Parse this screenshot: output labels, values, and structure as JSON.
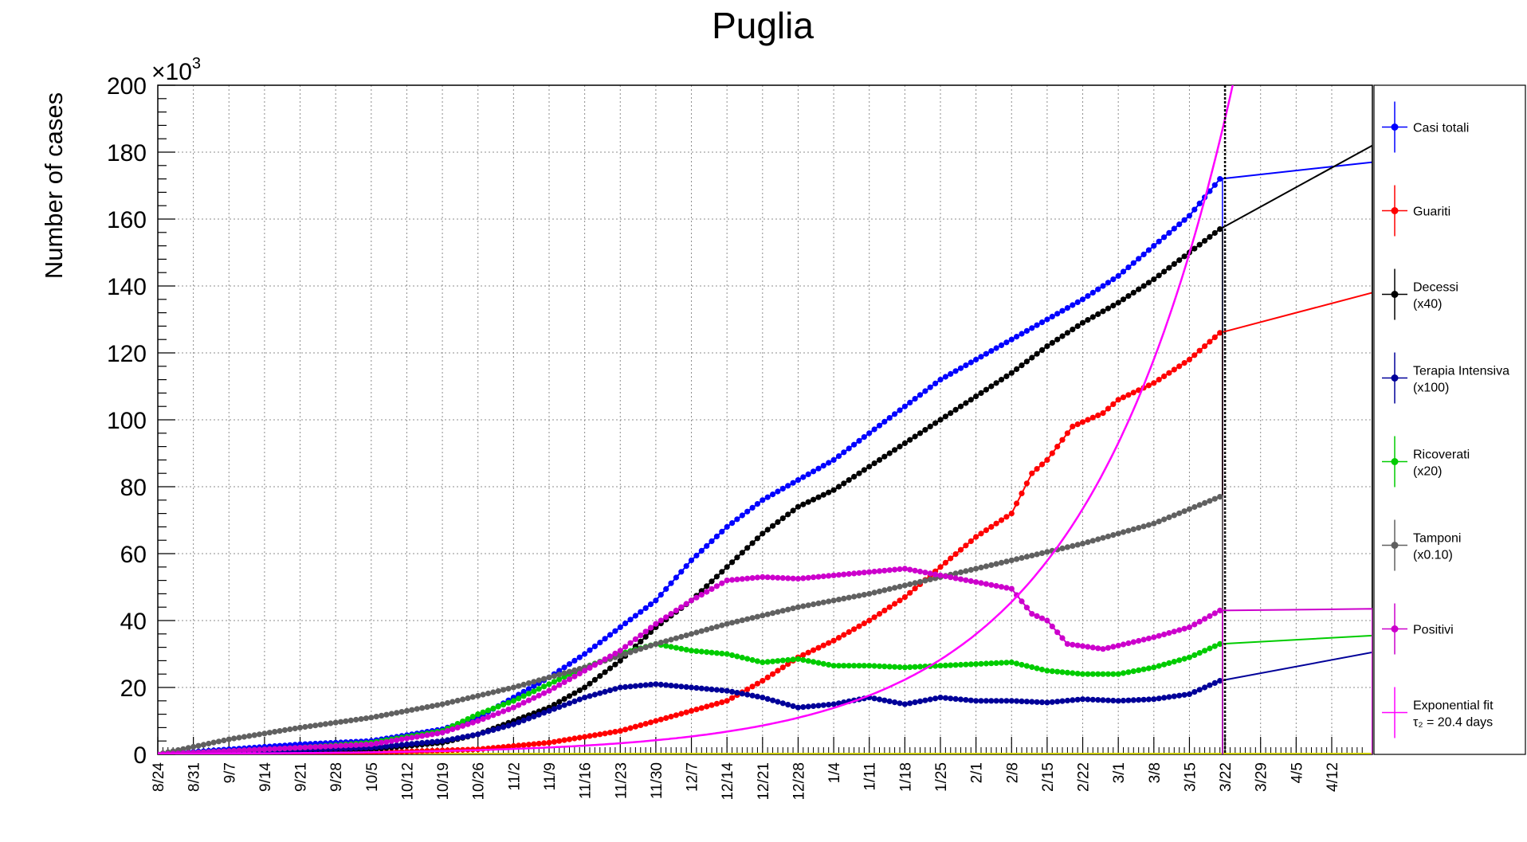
{
  "chart_data": {
    "type": "line",
    "title": "Puglia",
    "ylabel": "Number of cases",
    "y_multiplier": "×10",
    "y_multiplier_exp": "3",
    "ylim": [
      0,
      200000
    ],
    "y_ticks": [
      0,
      20,
      40,
      60,
      80,
      100,
      120,
      140,
      160,
      180,
      200
    ],
    "x_start": "2020-08-24",
    "x_end": "2021-04-20",
    "x_ticks": [
      "8/24",
      "8/31",
      "9/7",
      "9/14",
      "9/21",
      "9/28",
      "10/5",
      "10/12",
      "10/19",
      "10/26",
      "11/2",
      "11/9",
      "11/16",
      "11/23",
      "11/30",
      "12/7",
      "12/14",
      "12/21",
      "12/28",
      "1/4",
      "1/11",
      "1/18",
      "1/25",
      "2/1",
      "2/8",
      "2/15",
      "2/22",
      "3/1",
      "3/8",
      "3/15",
      "3/22",
      "3/29",
      "4/5",
      "4/12"
    ],
    "grid": true,
    "legend_position": "right",
    "vline_date": "2021-03-22",
    "series": [
      {
        "name": "Casi totali",
        "color": "#0000ff",
        "points": [
          [
            "2020-08-24",
            0
          ],
          [
            "2020-09-21",
            3000
          ],
          [
            "2020-10-05",
            4000
          ],
          [
            "2020-10-19",
            7500
          ],
          [
            "2020-10-26",
            11000
          ],
          [
            "2020-11-02",
            17000
          ],
          [
            "2020-11-09",
            23000
          ],
          [
            "2020-11-16",
            30000
          ],
          [
            "2020-11-23",
            38000
          ],
          [
            "2020-11-30",
            46000
          ],
          [
            "2020-12-07",
            58000
          ],
          [
            "2020-12-14",
            68000
          ],
          [
            "2020-12-21",
            76000
          ],
          [
            "2020-12-28",
            82000
          ],
          [
            "2021-01-04",
            88000
          ],
          [
            "2021-01-11",
            96000
          ],
          [
            "2021-01-18",
            104000
          ],
          [
            "2021-01-25",
            112000
          ],
          [
            "2021-02-01",
            118000
          ],
          [
            "2021-02-08",
            124000
          ],
          [
            "2021-02-15",
            130000
          ],
          [
            "2021-02-22",
            136000
          ],
          [
            "2021-03-01",
            143000
          ],
          [
            "2021-03-08",
            152000
          ],
          [
            "2021-03-15",
            161000
          ],
          [
            "2021-03-21",
            172000
          ]
        ],
        "extrapolation": [
          [
            "2021-03-21",
            172000
          ],
          [
            "2021-04-20",
            177000
          ]
        ]
      },
      {
        "name": "Guariti",
        "color": "#ff0000",
        "points": [
          [
            "2020-08-24",
            0
          ],
          [
            "2020-10-05",
            500
          ],
          [
            "2020-10-26",
            1500
          ],
          [
            "2020-11-09",
            3500
          ],
          [
            "2020-11-23",
            7000
          ],
          [
            "2020-11-30",
            10000
          ],
          [
            "2020-12-07",
            13000
          ],
          [
            "2020-12-14",
            16000
          ],
          [
            "2020-12-21",
            22000
          ],
          [
            "2020-12-28",
            29000
          ],
          [
            "2021-01-04",
            34000
          ],
          [
            "2021-01-11",
            40000
          ],
          [
            "2021-01-18",
            47000
          ],
          [
            "2021-01-25",
            56000
          ],
          [
            "2021-02-01",
            65000
          ],
          [
            "2021-02-08",
            72000
          ],
          [
            "2021-02-12",
            84000
          ],
          [
            "2021-02-15",
            88000
          ],
          [
            "2021-02-20",
            98000
          ],
          [
            "2021-02-26",
            102000
          ],
          [
            "2021-03-01",
            106000
          ],
          [
            "2021-03-08",
            111000
          ],
          [
            "2021-03-15",
            118000
          ],
          [
            "2021-03-21",
            126000
          ]
        ],
        "extrapolation": [
          [
            "2021-03-21",
            126000
          ],
          [
            "2021-04-20",
            138000
          ]
        ]
      },
      {
        "name": "Decessi",
        "label_extra": "(x40)",
        "color": "#000000",
        "points": [
          [
            "2020-08-24",
            0
          ],
          [
            "2020-10-05",
            1500
          ],
          [
            "2020-10-19",
            3500
          ],
          [
            "2020-10-26",
            6000
          ],
          [
            "2020-11-02",
            10000
          ],
          [
            "2020-11-09",
            14000
          ],
          [
            "2020-11-16",
            20000
          ],
          [
            "2020-11-23",
            28000
          ],
          [
            "2020-11-30",
            38000
          ],
          [
            "2020-12-07",
            46000
          ],
          [
            "2020-12-14",
            56000
          ],
          [
            "2020-12-21",
            66000
          ],
          [
            "2020-12-28",
            74000
          ],
          [
            "2021-01-04",
            79000
          ],
          [
            "2021-01-11",
            86000
          ],
          [
            "2021-01-18",
            93000
          ],
          [
            "2021-01-25",
            100000
          ],
          [
            "2021-02-01",
            107000
          ],
          [
            "2021-02-08",
            114000
          ],
          [
            "2021-02-15",
            122000
          ],
          [
            "2021-02-22",
            129000
          ],
          [
            "2021-03-01",
            135000
          ],
          [
            "2021-03-08",
            142000
          ],
          [
            "2021-03-15",
            150000
          ],
          [
            "2021-03-21",
            157000
          ]
        ],
        "extrapolation": [
          [
            "2021-03-21",
            157000
          ],
          [
            "2021-04-20",
            182000
          ]
        ]
      },
      {
        "name": "Terapia Intensiva",
        "label_extra": "(x100)",
        "color": "#000099",
        "points": [
          [
            "2020-08-24",
            0
          ],
          [
            "2020-10-05",
            2000
          ],
          [
            "2020-10-19",
            4000
          ],
          [
            "2020-10-26",
            6000
          ],
          [
            "2020-11-02",
            9000
          ],
          [
            "2020-11-09",
            13000
          ],
          [
            "2020-11-16",
            17000
          ],
          [
            "2020-11-23",
            20000
          ],
          [
            "2020-11-30",
            21000
          ],
          [
            "2020-12-07",
            20000
          ],
          [
            "2020-12-14",
            19000
          ],
          [
            "2020-12-21",
            17000
          ],
          [
            "2020-12-28",
            14000
          ],
          [
            "2021-01-04",
            15000
          ],
          [
            "2021-01-11",
            17000
          ],
          [
            "2021-01-18",
            15000
          ],
          [
            "2021-01-25",
            17000
          ],
          [
            "2021-02-01",
            16000
          ],
          [
            "2021-02-08",
            16000
          ],
          [
            "2021-02-15",
            15500
          ],
          [
            "2021-02-22",
            16500
          ],
          [
            "2021-03-01",
            16000
          ],
          [
            "2021-03-08",
            16500
          ],
          [
            "2021-03-15",
            18000
          ],
          [
            "2021-03-21",
            22000
          ]
        ],
        "extrapolation": [
          [
            "2021-03-21",
            22000
          ],
          [
            "2021-04-20",
            30500
          ]
        ]
      },
      {
        "name": "Ricoverati",
        "label_extra": "(x20)",
        "color": "#00cc00",
        "points": [
          [
            "2020-08-24",
            0
          ],
          [
            "2020-09-21",
            2000
          ],
          [
            "2020-10-05",
            3500
          ],
          [
            "2020-10-19",
            7000
          ],
          [
            "2020-10-26",
            12000
          ],
          [
            "2020-11-02",
            16000
          ],
          [
            "2020-11-09",
            21000
          ],
          [
            "2020-11-16",
            26000
          ],
          [
            "2020-11-23",
            30000
          ],
          [
            "2020-11-30",
            33000
          ],
          [
            "2020-12-07",
            31000
          ],
          [
            "2020-12-14",
            30000
          ],
          [
            "2020-12-21",
            27500
          ],
          [
            "2020-12-28",
            28500
          ],
          [
            "2021-01-04",
            26500
          ],
          [
            "2021-01-11",
            26500
          ],
          [
            "2021-01-18",
            26000
          ],
          [
            "2021-01-25",
            26500
          ],
          [
            "2021-02-01",
            27000
          ],
          [
            "2021-02-08",
            27500
          ],
          [
            "2021-02-15",
            25000
          ],
          [
            "2021-02-22",
            24000
          ],
          [
            "2021-03-01",
            24000
          ],
          [
            "2021-03-08",
            26000
          ],
          [
            "2021-03-15",
            29000
          ],
          [
            "2021-03-21",
            33000
          ]
        ],
        "extrapolation": [
          [
            "2021-03-21",
            33000
          ],
          [
            "2021-04-20",
            35500
          ]
        ]
      },
      {
        "name": "Tamponi",
        "label_extra": "(x0.10)",
        "color": "#606060",
        "points": [
          [
            "2020-08-24",
            0
          ],
          [
            "2020-09-07",
            4500
          ],
          [
            "2020-09-21",
            8000
          ],
          [
            "2020-10-05",
            11000
          ],
          [
            "2020-10-19",
            15000
          ],
          [
            "2020-11-02",
            20000
          ],
          [
            "2020-11-16",
            26000
          ],
          [
            "2020-11-30",
            33000
          ],
          [
            "2020-12-14",
            39000
          ],
          [
            "2020-12-28",
            44000
          ],
          [
            "2021-01-11",
            48000
          ],
          [
            "2021-01-25",
            53000
          ],
          [
            "2021-02-08",
            58000
          ],
          [
            "2021-02-22",
            63000
          ],
          [
            "2021-03-08",
            69000
          ],
          [
            "2021-03-21",
            77000
          ]
        ]
      },
      {
        "name": "Positivi",
        "color": "#cc00cc",
        "points": [
          [
            "2020-08-24",
            0
          ],
          [
            "2020-10-05",
            3000
          ],
          [
            "2020-10-19",
            6500
          ],
          [
            "2020-10-26",
            10000
          ],
          [
            "2020-11-02",
            14000
          ],
          [
            "2020-11-09",
            19000
          ],
          [
            "2020-11-16",
            25000
          ],
          [
            "2020-11-23",
            31000
          ],
          [
            "2020-11-30",
            39000
          ],
          [
            "2020-12-07",
            46000
          ],
          [
            "2020-12-14",
            52000
          ],
          [
            "2020-12-21",
            53000
          ],
          [
            "2020-12-28",
            52500
          ],
          [
            "2021-01-04",
            53500
          ],
          [
            "2021-01-11",
            54500
          ],
          [
            "2021-01-18",
            55500
          ],
          [
            "2021-01-25",
            53500
          ],
          [
            "2021-02-01",
            51500
          ],
          [
            "2021-02-08",
            49500
          ],
          [
            "2021-02-12",
            42000
          ],
          [
            "2021-02-15",
            40000
          ],
          [
            "2021-02-19",
            33000
          ],
          [
            "2021-02-26",
            31500
          ],
          [
            "2021-03-01",
            32500
          ],
          [
            "2021-03-08",
            35000
          ],
          [
            "2021-03-15",
            38000
          ],
          [
            "2021-03-21",
            43000
          ]
        ],
        "extrapolation": [
          [
            "2021-03-21",
            43000
          ],
          [
            "2021-04-20",
            43500
          ]
        ]
      },
      {
        "name": "Exponential fit",
        "label_line2": "τ₂ = 20.4 days",
        "color": "#ff00ff",
        "model": {
          "type": "exponential",
          "anchor_date": "2021-03-22",
          "anchor_value": 190000,
          "doubling_days": 20.4,
          "x_from": "2020-08-24",
          "x_to": "2021-03-24"
        }
      }
    ]
  }
}
